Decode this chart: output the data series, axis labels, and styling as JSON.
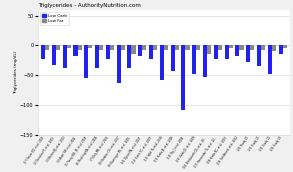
{
  "title": "Triglycerides - AuthorityNutrition.com",
  "ylabel": "Triglycerides (mg/dL)",
  "ylim": [
    -150,
    60
  ],
  "yticks": [
    50,
    0,
    -50,
    -100,
    -150
  ],
  "legend_labels": [
    "Low Carb",
    "Low Fat"
  ],
  "colors": [
    "#2222ee",
    "#888888"
  ],
  "categories": [
    "(1*) Foster DO, et al. 2003",
    "(2) Samaha FF, et al. 2003",
    "(3) Brehm BJ, et al. 2003",
    "(4) Aude YW, et al. 2004",
    "(5) Yancy WS, JR, et al. 2004",
    "(6) Meckling KA, et al. 2004",
    "(7) Daly ME, et al. 2006",
    "(8) Gardner CO, et al. 2007",
    "(9) Dansinger ML, et al. 2005",
    "(10) Dyson PA, et al. 2007",
    "(11) Steen SC, et al. 2007",
    "(12) Iqbal N, et al. 2008",
    "(13) Krebs JE, et al. 2006",
    "(14) Tay J, et al. 2008",
    "(15) Volek JD, et al. 2009",
    "(16) Brinkworth CD, et al. 20...",
    "(17) Hernandez TL, et al. 20...",
    "(18) Krebs NC, et al. 2010",
    "(19) Guldbrand, et al. 2012",
    "(20) Study 20",
    "(21) Study 21",
    "(22) Study 22",
    "(23) Study 23"
  ],
  "low_carb": [
    -22,
    -33,
    -38,
    -18,
    -55,
    -38,
    -22,
    -62,
    -38,
    -18,
    -22,
    -58,
    -42,
    -108,
    -48,
    -52,
    -22,
    -22,
    -18,
    -28,
    -35,
    -48,
    -15
  ],
  "low_fat": [
    -8,
    -8,
    -4,
    -8,
    -4,
    -8,
    -8,
    -8,
    -14,
    -8,
    -8,
    -8,
    -8,
    -8,
    -8,
    -14,
    -8,
    -4,
    -7,
    -8,
    -8,
    -10,
    -5
  ],
  "background_color": "#f0f0f0",
  "plot_bg": "#ffffff",
  "bar_width": 0.38
}
